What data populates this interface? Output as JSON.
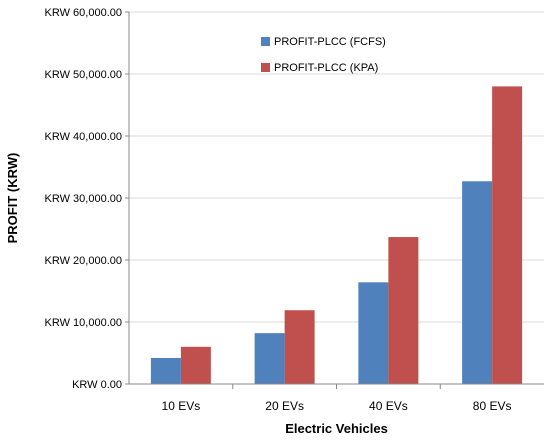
{
  "chart_data": {
    "type": "bar",
    "categories": [
      "10 EVs",
      "20 EVs",
      "40 EVs",
      "80 EVs"
    ],
    "series": [
      {
        "name": "PROFIT-PLCC (FCFS)",
        "values": [
          4200,
          8200,
          16400,
          32700
        ],
        "color": "#4f81bd"
      },
      {
        "name": "PROFIT-PLCC (KPA)",
        "values": [
          6000,
          11900,
          23700,
          48000
        ],
        "color": "#c0504d"
      }
    ],
    "xlabel": "Electric Vehicles",
    "ylabel": "PROFIT (KRW)",
    "ylim": [
      0,
      60000
    ],
    "yticks": [
      "KRW 0.00",
      "KRW 10,000.00",
      "KRW 20,000.00",
      "KRW 30,000.00",
      "KRW 40,000.00",
      "KRW 50,000.00",
      "KRW 60,000.00"
    ],
    "grid": "horizontal",
    "legend_position": "top-center"
  }
}
